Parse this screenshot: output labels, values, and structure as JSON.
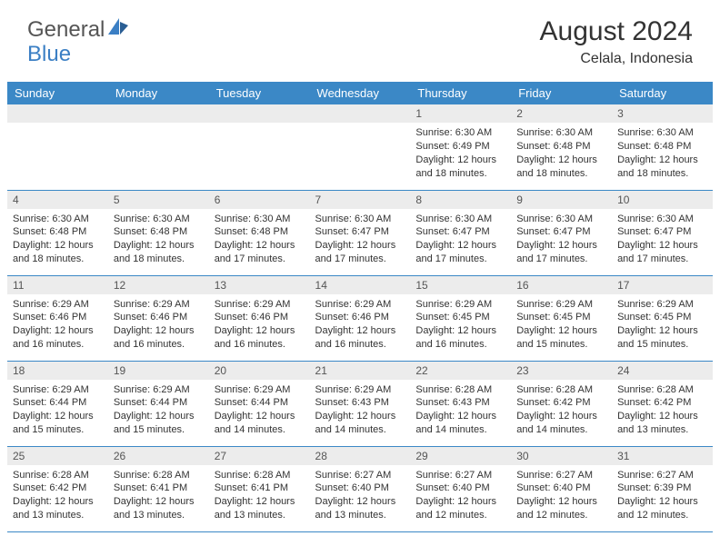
{
  "brand": {
    "part1": "General",
    "part2": "Blue"
  },
  "title": {
    "month": "August 2024",
    "location": "Celala, Indonesia"
  },
  "style": {
    "header_bg": "#3b88c6",
    "header_text": "#ffffff",
    "daynum_bg": "#ececec",
    "daynum_text": "#555555",
    "row_border": "#3b88c6",
    "body_text": "#333333",
    "page_bg": "#ffffff",
    "month_fontsize": 30,
    "loc_fontsize": 16,
    "header_fontsize": 13,
    "daynum_fontsize": 12,
    "body_fontsize": 11
  },
  "weekdays": [
    "Sunday",
    "Monday",
    "Tuesday",
    "Wednesday",
    "Thursday",
    "Friday",
    "Saturday"
  ],
  "weeks": [
    [
      null,
      null,
      null,
      null,
      {
        "n": "1",
        "sr": "6:30 AM",
        "ss": "6:49 PM",
        "dl": "12 hours and 18 minutes."
      },
      {
        "n": "2",
        "sr": "6:30 AM",
        "ss": "6:48 PM",
        "dl": "12 hours and 18 minutes."
      },
      {
        "n": "3",
        "sr": "6:30 AM",
        "ss": "6:48 PM",
        "dl": "12 hours and 18 minutes."
      }
    ],
    [
      {
        "n": "4",
        "sr": "6:30 AM",
        "ss": "6:48 PM",
        "dl": "12 hours and 18 minutes."
      },
      {
        "n": "5",
        "sr": "6:30 AM",
        "ss": "6:48 PM",
        "dl": "12 hours and 18 minutes."
      },
      {
        "n": "6",
        "sr": "6:30 AM",
        "ss": "6:48 PM",
        "dl": "12 hours and 17 minutes."
      },
      {
        "n": "7",
        "sr": "6:30 AM",
        "ss": "6:47 PM",
        "dl": "12 hours and 17 minutes."
      },
      {
        "n": "8",
        "sr": "6:30 AM",
        "ss": "6:47 PM",
        "dl": "12 hours and 17 minutes."
      },
      {
        "n": "9",
        "sr": "6:30 AM",
        "ss": "6:47 PM",
        "dl": "12 hours and 17 minutes."
      },
      {
        "n": "10",
        "sr": "6:30 AM",
        "ss": "6:47 PM",
        "dl": "12 hours and 17 minutes."
      }
    ],
    [
      {
        "n": "11",
        "sr": "6:29 AM",
        "ss": "6:46 PM",
        "dl": "12 hours and 16 minutes."
      },
      {
        "n": "12",
        "sr": "6:29 AM",
        "ss": "6:46 PM",
        "dl": "12 hours and 16 minutes."
      },
      {
        "n": "13",
        "sr": "6:29 AM",
        "ss": "6:46 PM",
        "dl": "12 hours and 16 minutes."
      },
      {
        "n": "14",
        "sr": "6:29 AM",
        "ss": "6:46 PM",
        "dl": "12 hours and 16 minutes."
      },
      {
        "n": "15",
        "sr": "6:29 AM",
        "ss": "6:45 PM",
        "dl": "12 hours and 16 minutes."
      },
      {
        "n": "16",
        "sr": "6:29 AM",
        "ss": "6:45 PM",
        "dl": "12 hours and 15 minutes."
      },
      {
        "n": "17",
        "sr": "6:29 AM",
        "ss": "6:45 PM",
        "dl": "12 hours and 15 minutes."
      }
    ],
    [
      {
        "n": "18",
        "sr": "6:29 AM",
        "ss": "6:44 PM",
        "dl": "12 hours and 15 minutes."
      },
      {
        "n": "19",
        "sr": "6:29 AM",
        "ss": "6:44 PM",
        "dl": "12 hours and 15 minutes."
      },
      {
        "n": "20",
        "sr": "6:29 AM",
        "ss": "6:44 PM",
        "dl": "12 hours and 14 minutes."
      },
      {
        "n": "21",
        "sr": "6:29 AM",
        "ss": "6:43 PM",
        "dl": "12 hours and 14 minutes."
      },
      {
        "n": "22",
        "sr": "6:28 AM",
        "ss": "6:43 PM",
        "dl": "12 hours and 14 minutes."
      },
      {
        "n": "23",
        "sr": "6:28 AM",
        "ss": "6:42 PM",
        "dl": "12 hours and 14 minutes."
      },
      {
        "n": "24",
        "sr": "6:28 AM",
        "ss": "6:42 PM",
        "dl": "12 hours and 13 minutes."
      }
    ],
    [
      {
        "n": "25",
        "sr": "6:28 AM",
        "ss": "6:42 PM",
        "dl": "12 hours and 13 minutes."
      },
      {
        "n": "26",
        "sr": "6:28 AM",
        "ss": "6:41 PM",
        "dl": "12 hours and 13 minutes."
      },
      {
        "n": "27",
        "sr": "6:28 AM",
        "ss": "6:41 PM",
        "dl": "12 hours and 13 minutes."
      },
      {
        "n": "28",
        "sr": "6:27 AM",
        "ss": "6:40 PM",
        "dl": "12 hours and 13 minutes."
      },
      {
        "n": "29",
        "sr": "6:27 AM",
        "ss": "6:40 PM",
        "dl": "12 hours and 12 minutes."
      },
      {
        "n": "30",
        "sr": "6:27 AM",
        "ss": "6:40 PM",
        "dl": "12 hours and 12 minutes."
      },
      {
        "n": "31",
        "sr": "6:27 AM",
        "ss": "6:39 PM",
        "dl": "12 hours and 12 minutes."
      }
    ]
  ],
  "labels": {
    "sunrise": "Sunrise:",
    "sunset": "Sunset:",
    "daylight": "Daylight:"
  }
}
